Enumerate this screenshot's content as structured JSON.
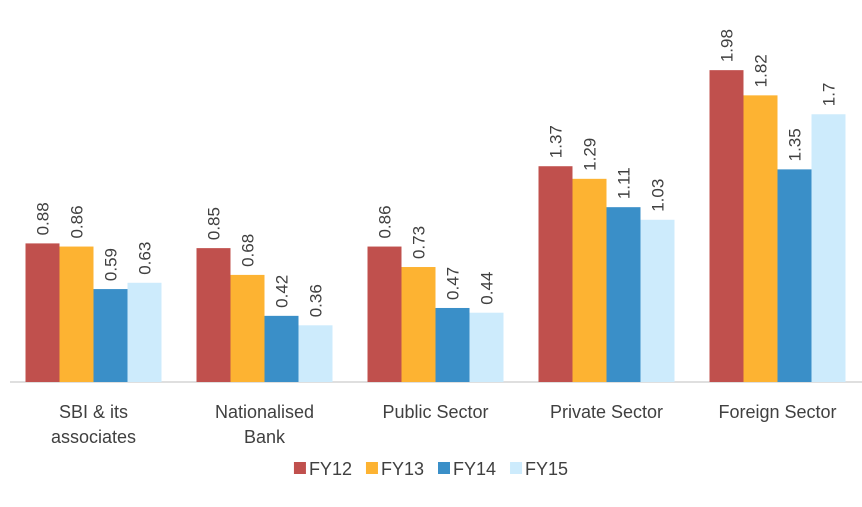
{
  "chart_data": {
    "type": "bar",
    "categories": [
      "SBI & its\nassociates",
      "Nationalised\nBank",
      "Public Sector",
      "Private Sector",
      "Foreign Sector"
    ],
    "series": [
      {
        "name": "FY12",
        "color": "#c0504d",
        "values": [
          0.88,
          0.85,
          0.86,
          1.37,
          1.98
        ]
      },
      {
        "name": "FY13",
        "color": "#fdb332",
        "values": [
          0.86,
          0.68,
          0.73,
          1.29,
          1.82
        ]
      },
      {
        "name": "FY14",
        "color": "#3a8fc8",
        "values": [
          0.59,
          0.42,
          0.47,
          1.11,
          1.35
        ]
      },
      {
        "name": "FY15",
        "color": "#cdebfc",
        "values": [
          0.63,
          0.36,
          0.44,
          1.03,
          1.7
        ]
      }
    ],
    "ylim": [
      0,
      2.4
    ],
    "legend": "bottom"
  }
}
